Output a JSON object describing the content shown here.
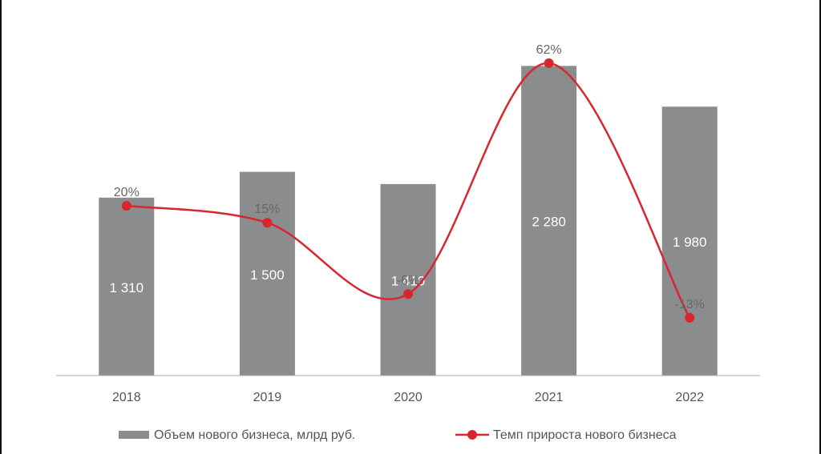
{
  "chart_data": {
    "type": "bar",
    "categories": [
      "2018",
      "2019",
      "2020",
      "2021",
      "2022"
    ],
    "series": [
      {
        "name": "Объем нового бизнеса, млрд руб.",
        "type": "bar",
        "color": "#8a8c8e",
        "values": [
          1310,
          1500,
          1410,
          2280,
          1980
        ],
        "labels": [
          "1 310",
          "1 500",
          "1 410",
          "2 280",
          "1 980"
        ]
      },
      {
        "name": "Темп прироста нового бизнеса",
        "type": "line",
        "color": "#d9262e",
        "values": [
          20,
          15,
          -6,
          62,
          -13
        ],
        "labels": [
          "20%",
          "15%",
          "-6%",
          "62%",
          "-13%"
        ]
      }
    ],
    "title": "",
    "xlabel": "",
    "ylabel": "",
    "ylim": [
      0,
      2500
    ],
    "y2lim": [
      -30,
      70
    ],
    "grid": false,
    "legend_position": "bottom"
  }
}
